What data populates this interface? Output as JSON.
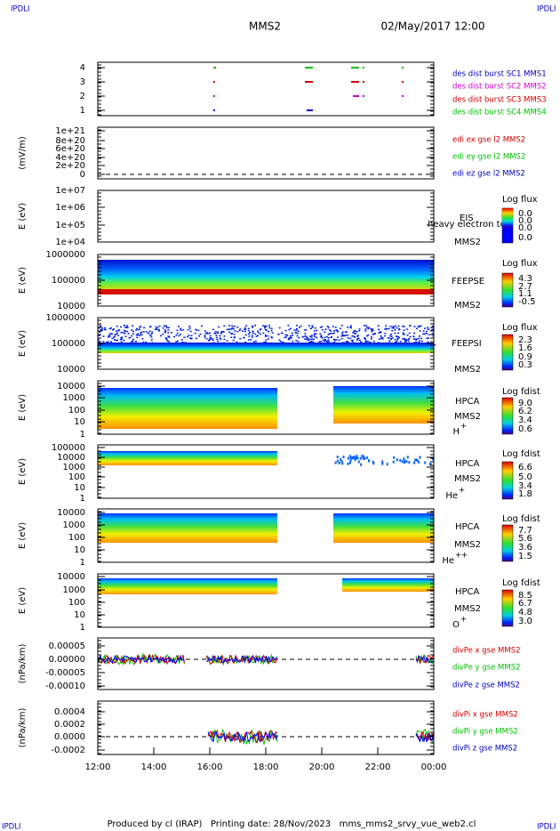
{
  "header": {
    "corner_label": "IPDLI",
    "title": "MMS2",
    "date": "02/May/2017 12:00"
  },
  "panels": [
    {
      "yticks": [
        "4",
        "3",
        "2",
        "1"
      ],
      "legend": [
        "des dist burst SC1 MMS1",
        "des dist burst SC2 MMS2",
        "des dist burst SC3 MMS3",
        "des dist burst SC4 MMS4"
      ]
    },
    {
      "ylabel": "(mV/m)",
      "yticks": [
        "1e+21",
        "8e+20",
        "6e+20",
        "4e+20",
        "2e+20",
        "0"
      ],
      "legend": [
        "edi ex gse l2 MMS2",
        "edi ey gse l2 MMS2",
        "edi ez gse l2 MMS2"
      ]
    },
    {
      "ylabel": "E (eV)",
      "yticks": [
        "1e+07",
        "1e+06",
        "1e+05",
        "1e+04"
      ],
      "instrument": [
        "EIS",
        "heavy electron to",
        "MMS2"
      ],
      "colorbar": {
        "label": "Log flux",
        "ticks": [
          "0.0",
          "0.0",
          "0.0",
          "0.0"
        ]
      }
    },
    {
      "ylabel": "E (eV)",
      "yticks": [
        "1000000",
        "100000",
        "10000"
      ],
      "instrument": [
        "FEEPSE",
        "MMS2"
      ],
      "colorbar": {
        "label": "Log flux",
        "ticks": [
          "4.3",
          "2.7",
          "1.1",
          "-0.5"
        ]
      }
    },
    {
      "ylabel": "E (eV)",
      "yticks": [
        "1000000",
        "100000",
        "10000"
      ],
      "instrument": [
        "FEEPSI",
        "MMS2"
      ],
      "colorbar": {
        "label": "Log flux",
        "ticks": [
          "2.3",
          "1.6",
          "0.9",
          "0.3"
        ]
      }
    },
    {
      "ylabel": "E (eV)",
      "yticks": [
        "10000",
        "1000",
        "100",
        "10",
        "1"
      ],
      "instrument": [
        "HPCA",
        "MMS2"
      ],
      "species": {
        "name": "H",
        "charge": "+"
      },
      "colorbar": {
        "label": "Log fdist",
        "ticks": [
          "9.0",
          "6.2",
          "3.4",
          "0.6"
        ]
      }
    },
    {
      "ylabel": "E (eV)",
      "yticks": [
        "100000",
        "10000",
        "1000",
        "100",
        "10",
        "1"
      ],
      "instrument": [
        "HPCA",
        "MMS2"
      ],
      "species": {
        "name": "He",
        "charge": "+"
      },
      "colorbar": {
        "label": "Log fdist",
        "ticks": [
          "6.6",
          "5.0",
          "3.4",
          "1.8"
        ]
      }
    },
    {
      "ylabel": "E (eV)",
      "yticks": [
        "10000",
        "1000",
        "100",
        "10",
        "1"
      ],
      "instrument": [
        "HPCA",
        "MMS2"
      ],
      "species": {
        "name": "He",
        "charge": "++"
      },
      "colorbar": {
        "label": "Log fdist",
        "ticks": [
          "7.7",
          "5.6",
          "3.6",
          "1.5"
        ]
      }
    },
    {
      "ylabel": "E (eV)",
      "yticks": [
        "10000",
        "1000",
        "100",
        "10",
        "1"
      ],
      "instrument": [
        "HPCA",
        "MMS2"
      ],
      "species": {
        "name": "O",
        "charge": "+"
      },
      "colorbar": {
        "label": "Log fdist",
        "ticks": [
          "8.5",
          "6.7",
          "4.8",
          "3.0"
        ]
      }
    },
    {
      "ylabel": "(nPa/km)",
      "yticks": [
        "0.00005",
        "0.00000",
        "-0.00005",
        "-0.00010"
      ],
      "legend": [
        "divPe x gse MMS2",
        "divPe y gse MMS2",
        "divPe z gse MMS2"
      ]
    },
    {
      "ylabel": "(nPa/km)",
      "yticks": [
        "0.0004",
        "0.0002",
        "0.0000",
        "-0.0002"
      ],
      "legend": [
        "divPi x gse MMS2",
        "divPi y gse MMS2",
        "divPi z gse MMS2"
      ]
    }
  ],
  "xticks": [
    "12:00",
    "14:00",
    "16:00",
    "18:00",
    "20:00",
    "22:00",
    "00:00"
  ],
  "footer": "Produced by cl (IRAP)   Printing date: 28/Nov/2023   mms_mms2_srvy_vue_web2.cl"
}
